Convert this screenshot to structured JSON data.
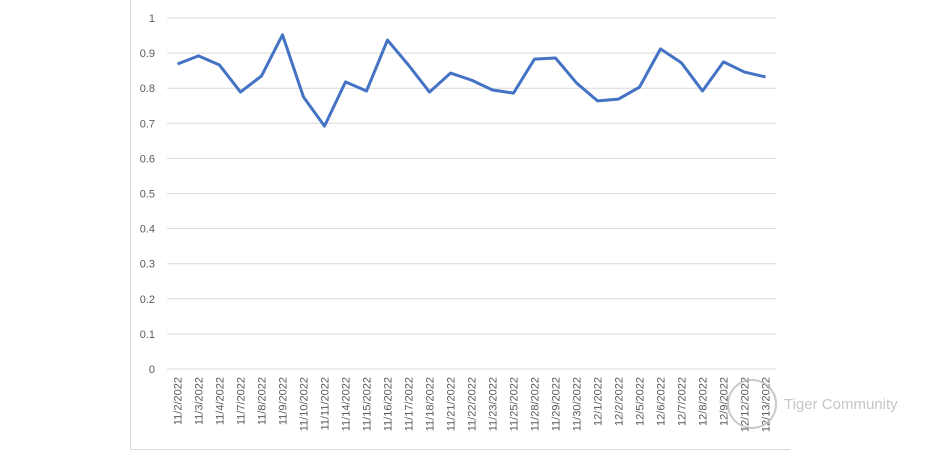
{
  "chart_data": {
    "type": "line",
    "categories": [
      "11/2/2022",
      "11/3/2022",
      "11/4/2022",
      "11/7/2022",
      "11/8/2022",
      "11/9/2022",
      "11/10/2022",
      "11/11/2022",
      "11/14/2022",
      "11/15/2022",
      "11/16/2022",
      "11/17/2022",
      "11/18/2022",
      "11/21/2022",
      "11/22/2022",
      "11/23/2022",
      "11/25/2022",
      "11/28/2022",
      "11/29/2022",
      "11/30/2022",
      "12/1/2022",
      "12/2/2022",
      "12/5/2022",
      "12/6/2022",
      "12/7/2022",
      "12/8/2022",
      "12/9/2022",
      "12/12/2022",
      "12/13/2022"
    ],
    "values": [
      0.869,
      0.892,
      0.866,
      0.789,
      0.835,
      0.952,
      0.775,
      0.692,
      0.818,
      0.792,
      0.937,
      0.866,
      0.789,
      0.843,
      0.823,
      0.795,
      0.786,
      0.883,
      0.886,
      0.815,
      0.764,
      0.769,
      0.803,
      0.912,
      0.872,
      0.792,
      0.875,
      0.846,
      0.832
    ],
    "color": "#4472c4",
    "ylim": [
      0,
      1
    ],
    "yticks": [
      0,
      0.1,
      0.2,
      0.3,
      0.4,
      0.5,
      0.6,
      0.7,
      0.8,
      0.9,
      1
    ],
    "grid": true,
    "watermark": "Tiger Community"
  }
}
